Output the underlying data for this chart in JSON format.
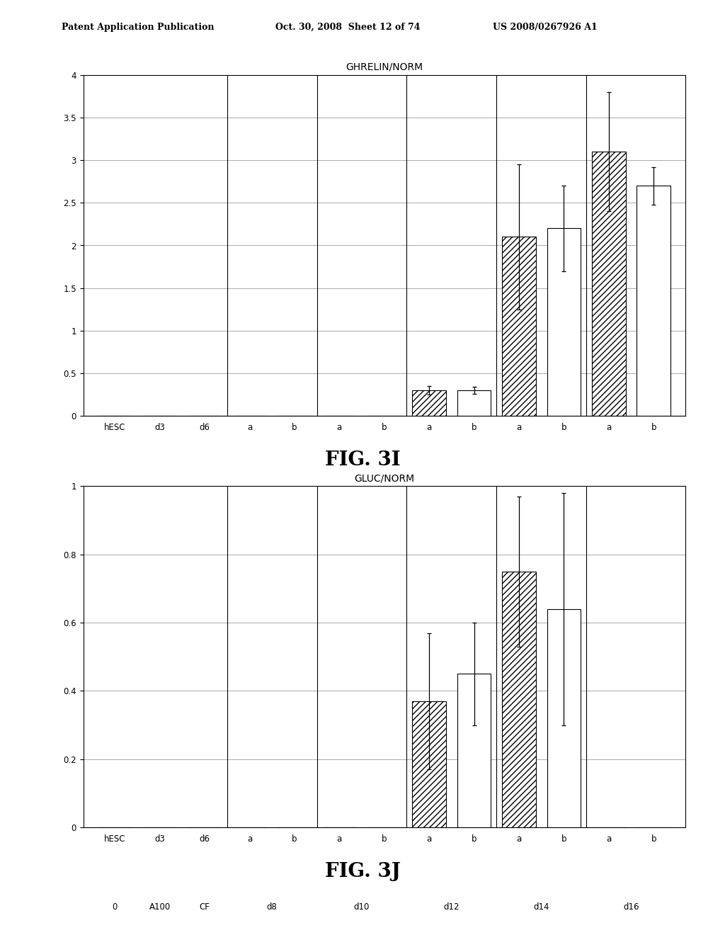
{
  "fig3i_title": "GHRELIN/NORM",
  "fig3j_title": "GLUC/NORM",
  "fig3i_label": "FIG. 3I",
  "fig3j_label": "FIG. 3J",
  "header_left": "Patent Application Publication",
  "header_mid": "Oct. 30, 2008  Sheet 12 of 74",
  "header_right": "US 2008/0267926 A1",
  "x_labels_row1": [
    "hESC",
    "d3",
    "d6",
    "a",
    "b",
    "a",
    "b",
    "a",
    "b",
    "a",
    "b",
    "a",
    "b"
  ],
  "x_labels_row2_labels": [
    "0",
    "A100",
    "CF",
    "d8",
    "d10",
    "d12",
    "d14",
    "d16"
  ],
  "x_labels_row2_centers": [
    0,
    1,
    2,
    3.5,
    5.5,
    7.5,
    9.5,
    11.5
  ],
  "fig3i_values": [
    0.0,
    0.0,
    0.0,
    0.0,
    0.0,
    0.0,
    0.0,
    0.3,
    0.3,
    2.1,
    2.2,
    3.1,
    2.7
  ],
  "fig3i_errors": [
    0.0,
    0.0,
    0.0,
    0.0,
    0.0,
    0.0,
    0.0,
    0.05,
    0.04,
    0.85,
    0.5,
    0.7,
    0.22
  ],
  "fig3j_values": [
    0.0,
    0.0,
    0.0,
    0.0,
    0.0,
    0.0,
    0.0,
    0.37,
    0.45,
    0.75,
    0.64,
    0.0,
    0.0
  ],
  "fig3j_errors": [
    0.0,
    0.0,
    0.0,
    0.0,
    0.0,
    0.0,
    0.0,
    0.2,
    0.15,
    0.22,
    0.34,
    0.0,
    0.0
  ],
  "fig3i_ylim": [
    0,
    4
  ],
  "fig3i_yticks": [
    0,
    0.5,
    1.0,
    1.5,
    2.0,
    2.5,
    3.0,
    3.5,
    4.0
  ],
  "fig3j_ylim": [
    0,
    1
  ],
  "fig3j_yticks": [
    0,
    0.2,
    0.4,
    0.6,
    0.8,
    1.0
  ],
  "bar_width": 0.75,
  "hatch_pattern": "////",
  "bar_face_color": "#ffffff",
  "bar_edge_color": "#000000",
  "background_color": "#ffffff",
  "grid_color": "#aaaaaa",
  "text_color": "#000000",
  "title_fontsize": 10,
  "tick_fontsize": 8.5,
  "row2_fontsize": 8.5,
  "fig_label_fontsize": 20,
  "header_fontsize": 9,
  "divider_positions": [
    2.5,
    4.5,
    6.5,
    8.5,
    10.5
  ]
}
